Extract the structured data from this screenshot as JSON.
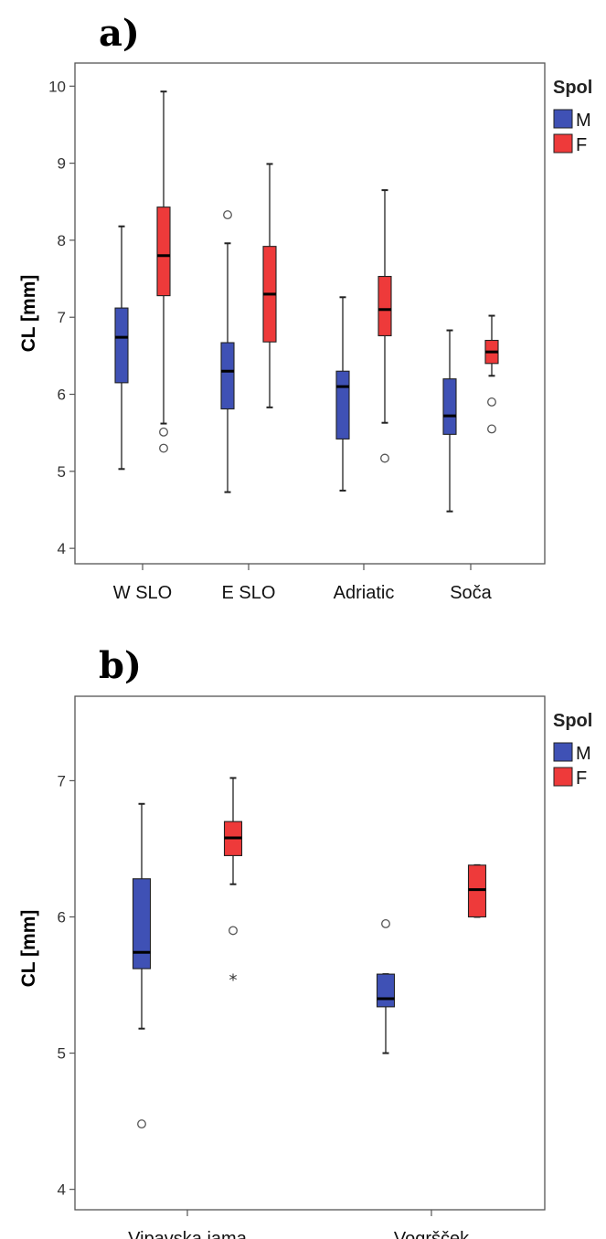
{
  "colors": {
    "M": "#3f51b5",
    "F": "#ee3a3a",
    "frame": "#555555"
  },
  "chart_data": [
    {
      "type": "boxplot",
      "panel_label": "a)",
      "title": "",
      "xlabel": "",
      "ylabel": "CL [mm]",
      "ylim": [
        3.8,
        10.3
      ],
      "yticks": [
        4,
        5,
        6,
        7,
        8,
        9,
        10
      ],
      "categories": [
        "W SLO",
        "E SLO",
        "Adriatic",
        "Soča"
      ],
      "legend": {
        "title": "Spol",
        "entries": [
          "M",
          "F"
        ],
        "placement": "right"
      },
      "series": [
        {
          "name": "M",
          "boxes": [
            {
              "min": 5.03,
              "q1": 6.15,
              "median": 6.74,
              "q3": 7.12,
              "max": 8.18,
              "outliers": [],
              "extremes": []
            },
            {
              "min": 4.73,
              "q1": 5.81,
              "median": 6.3,
              "q3": 6.67,
              "max": 7.96,
              "outliers": [
                8.33
              ],
              "extremes": []
            },
            {
              "min": 4.75,
              "q1": 5.42,
              "median": 6.1,
              "q3": 6.3,
              "max": 7.26,
              "outliers": [],
              "extremes": []
            },
            {
              "min": 4.48,
              "q1": 5.48,
              "median": 5.72,
              "q3": 6.2,
              "max": 6.83,
              "outliers": [],
              "extremes": []
            }
          ]
        },
        {
          "name": "F",
          "boxes": [
            {
              "min": 5.62,
              "q1": 7.28,
              "median": 7.8,
              "q3": 8.43,
              "max": 9.93,
              "outliers": [
                5.51,
                5.3
              ],
              "extremes": []
            },
            {
              "min": 5.83,
              "q1": 6.68,
              "median": 7.3,
              "q3": 7.92,
              "max": 8.99,
              "outliers": [],
              "extremes": []
            },
            {
              "min": 5.63,
              "q1": 6.76,
              "median": 7.1,
              "q3": 7.53,
              "max": 8.65,
              "outliers": [
                5.17
              ],
              "extremes": []
            },
            {
              "min": 6.24,
              "q1": 6.4,
              "median": 6.55,
              "q3": 6.7,
              "max": 7.02,
              "outliers": [
                5.9,
                5.55
              ],
              "extremes": []
            }
          ]
        }
      ]
    },
    {
      "type": "boxplot",
      "panel_label": "b)",
      "title": "",
      "xlabel": "",
      "ylabel": "CL [mm]",
      "ylim": [
        3.85,
        7.62
      ],
      "yticks": [
        4,
        5,
        6,
        7
      ],
      "categories": [
        "Vipavska jama",
        "Vogršček"
      ],
      "legend": {
        "title": "Spol",
        "entries": [
          "M",
          "F"
        ],
        "placement": "right"
      },
      "series": [
        {
          "name": "M",
          "boxes": [
            {
              "min": 5.18,
              "q1": 5.62,
              "median": 5.74,
              "q3": 6.28,
              "max": 6.83,
              "outliers": [
                4.48
              ],
              "extremes": []
            },
            {
              "min": 5.0,
              "q1": 5.34,
              "median": 5.4,
              "q3": 5.58,
              "max": 5.58,
              "outliers": [
                5.95
              ],
              "extremes": []
            }
          ]
        },
        {
          "name": "F",
          "boxes": [
            {
              "min": 6.24,
              "q1": 6.45,
              "median": 6.58,
              "q3": 6.7,
              "max": 7.02,
              "outliers": [
                5.9
              ],
              "extremes": [
                5.55
              ]
            },
            {
              "min": 6.0,
              "q1": 6.0,
              "median": 6.2,
              "q3": 6.38,
              "max": 6.38,
              "outliers": [],
              "extremes": []
            }
          ]
        }
      ]
    }
  ]
}
